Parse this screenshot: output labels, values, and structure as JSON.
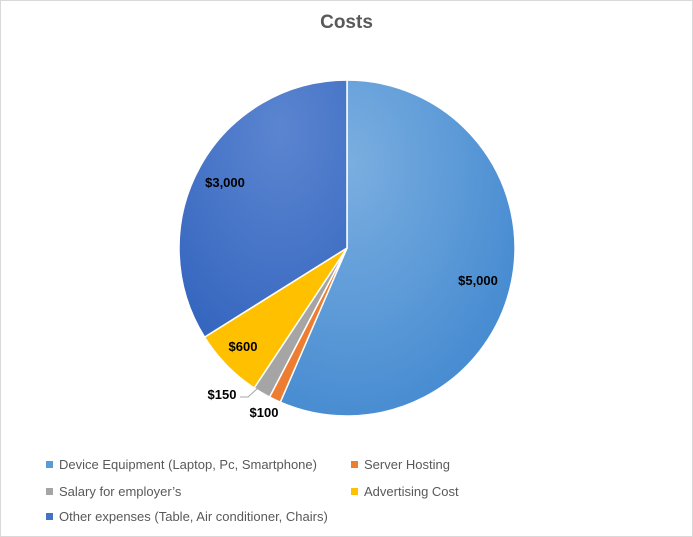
{
  "chart_data": {
    "type": "pie",
    "title": "Costs",
    "categories": [
      "Device Equipment (Laptop, Pc, Smartphone)",
      "Server Hosting",
      "Salary for employer’s",
      "Advertising Cost",
      "Other expenses (Table, Air conditioner, Chairs)"
    ],
    "values": [
      5000,
      100,
      150,
      600,
      3000
    ],
    "data_labels": [
      "$5,000",
      "$100",
      "$150",
      "$600",
      "$3,000"
    ],
    "colors": [
      "#4a90d2",
      "#ed7d31",
      "#a5a5a5",
      "#ffc000",
      "#4472c4"
    ],
    "legend_position": "bottom"
  }
}
